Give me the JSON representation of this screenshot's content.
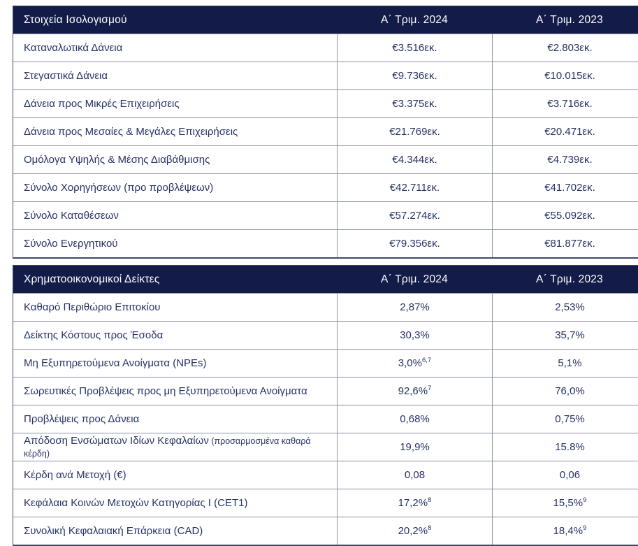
{
  "colors": {
    "header_bg": "#131c49",
    "header_text": "#ffffff",
    "body_text": "#273366",
    "grid_line": "#8d93a5",
    "outer_border": "#3f486b"
  },
  "tables": [
    {
      "header": {
        "title": "Στοιχεία Ισολογισμού",
        "col_2024": "Α΄ Τριμ. 2024",
        "col_2023": "Α΄ Τριμ. 2023"
      },
      "rows": [
        {
          "label": "Καταναλωτικά Δάνεια",
          "v2024": "€3.516εκ.",
          "v2023": "€2.803εκ."
        },
        {
          "label": "Στεγαστικά Δάνεια",
          "v2024": "€9.736εκ.",
          "v2023": "€10.015εκ."
        },
        {
          "label": "Δάνεια προς Μικρές Επιχειρήσεις",
          "v2024": "€3.375εκ.",
          "v2023": "€3.716εκ."
        },
        {
          "label": "Δάνεια προς Μεσαίες & Μεγάλες Επιχειρήσεις",
          "v2024": "€21.769εκ.",
          "v2023": "€20.471εκ."
        },
        {
          "label": "Ομόλογα Υψηλής & Μέσης Διαβάθμισης",
          "v2024": "€4.344εκ.",
          "v2023": "€4.739εκ."
        },
        {
          "label": "Σύνολο Χορηγήσεων (προ προβλέψεων)",
          "v2024": "€42.711εκ.",
          "v2023": "€41.702εκ."
        },
        {
          "label": "Σύνολο Καταθέσεων",
          "v2024": "€57.274εκ.",
          "v2023": "€55.092εκ."
        },
        {
          "label": "Σύνολο Ενεργητικού",
          "v2024": "€79.356εκ.",
          "v2023": "€81.877εκ."
        }
      ]
    },
    {
      "header": {
        "title": "Χρηματοοικονομικοί Δείκτες",
        "col_2024": "Α΄ Τριμ. 2024",
        "col_2023": "Α΄ Τριμ. 2023"
      },
      "rows": [
        {
          "label": "Καθαρό Περιθώριο Επιτοκίου",
          "v2024": "2,87%",
          "v2023": "2,53%"
        },
        {
          "label": "Δείκτης Κόστους προς Έσοδα",
          "v2024": "30,3%",
          "v2023": "35,7%"
        },
        {
          "label": "Μη Εξυπηρετούμενα Ανοίγματα (NPEs)",
          "v2024": "3,0%",
          "sup2024": "6,7",
          "v2023": "5,1%"
        },
        {
          "label": "Σωρευτικές Προβλέψεις προς μη Εξυπηρετούμενα Ανοίγματα",
          "v2024": "92,6%",
          "sup2024": "7",
          "v2023": "76,0%"
        },
        {
          "label": "Προβλέψεις προς Δάνεια",
          "v2024": "0,68%",
          "v2023": "0,75%"
        },
        {
          "label": "Απόδοση Ενσώματων Ιδίων Κεφαλαίων",
          "label_small": "(προσαρμοσμένα καθαρά κέρδη)",
          "v2024": "19,9%",
          "v2023": "15.8%"
        },
        {
          "label": "Κέρδη ανά Μετοχή (€)",
          "v2024": "0,08",
          "v2023": "0,06"
        },
        {
          "label": "Κεφάλαια Κοινών Μετοχών Κατηγορίας I (CET1)",
          "v2024": "17,2%",
          "sup2024": "8",
          "v2023": "15,5%",
          "sup2023": "9"
        },
        {
          "label": "Συνολική Κεφαλαιακή Επάρκεια (CAD)",
          "v2024": "20,2%",
          "sup2024": "8",
          "v2023": "18,4%",
          "sup2023": "9"
        }
      ]
    }
  ]
}
